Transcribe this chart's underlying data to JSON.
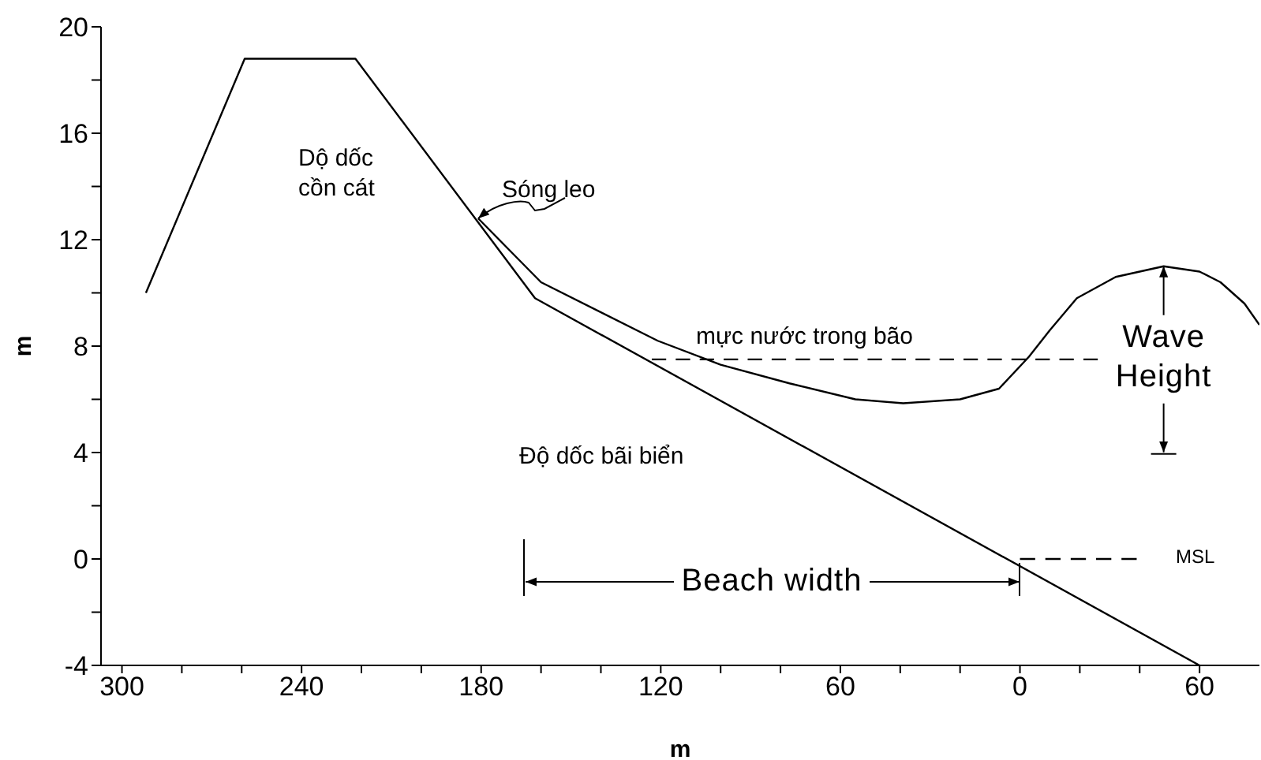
{
  "chart_data": {
    "type": "line",
    "xlabel": "m",
    "ylabel": "m",
    "xlim": [
      307,
      -80
    ],
    "ylim": [
      -4,
      20
    ],
    "xticks": [
      300,
      {
        "value": 280,
        "label": null
      },
      {
        "value": 260,
        "label": null
      },
      240,
      {
        "value": 220,
        "label": null
      },
      {
        "value": 200,
        "label": null
      },
      180,
      {
        "value": 160,
        "label": null
      },
      {
        "value": 140,
        "label": null
      },
      120,
      {
        "value": 100,
        "label": null
      },
      {
        "value": 80,
        "label": null
      },
      60,
      {
        "value": 40,
        "label": null
      },
      {
        "value": 20,
        "label": null
      },
      0,
      {
        "value": -20,
        "label": null
      },
      {
        "value": -40,
        "label": null
      },
      {
        "value": -60,
        "label": "60"
      }
    ],
    "yticks": [
      -4,
      {
        "value": -2,
        "label": null
      },
      0,
      {
        "value": 2,
        "label": null
      },
      4,
      {
        "value": 6,
        "label": null
      },
      8,
      {
        "value": 10,
        "label": null
      },
      12,
      {
        "value": 14,
        "label": null
      },
      16,
      {
        "value": 18,
        "label": null
      },
      20
    ],
    "series": [
      {
        "color": "#000000",
        "line_style": "solid",
        "x": [
          292,
          259,
          222,
          162,
          -60
        ],
        "values": [
          10,
          18.8,
          18.8,
          9.8,
          -4
        ]
      },
      {
        "color": "#000000",
        "line_style": "solid",
        "x": [
          181,
          160,
          121,
          100,
          77,
          55,
          39,
          20,
          7,
          -3,
          -10,
          -19,
          -32,
          -48,
          -60,
          -67,
          -75,
          -80
        ],
        "values": [
          12.8,
          10.4,
          8.2,
          7.3,
          6.6,
          6.0,
          5.85,
          6.0,
          6.4,
          7.6,
          8.6,
          9.8,
          10.6,
          11.0,
          10.8,
          10.4,
          9.6,
          8.8
        ]
      },
      {
        "color": "#000000",
        "line_style": "dashed",
        "x": [
          123,
          -26
        ],
        "values": [
          7.5,
          7.5
        ]
      },
      {
        "color": "#000000",
        "line_style": "dashed",
        "x": [
          0,
          -39
        ],
        "values": [
          0,
          0
        ]
      }
    ],
    "annotations": [
      "Dộ dốc cồn cát",
      "Sóng leo",
      "mực nước trong bão",
      {
        "text": "Wave Height",
        "x": -48,
        "y": 11
      },
      "Độ dốc bãi biển",
      "Beach width",
      "MSL"
    ]
  }
}
